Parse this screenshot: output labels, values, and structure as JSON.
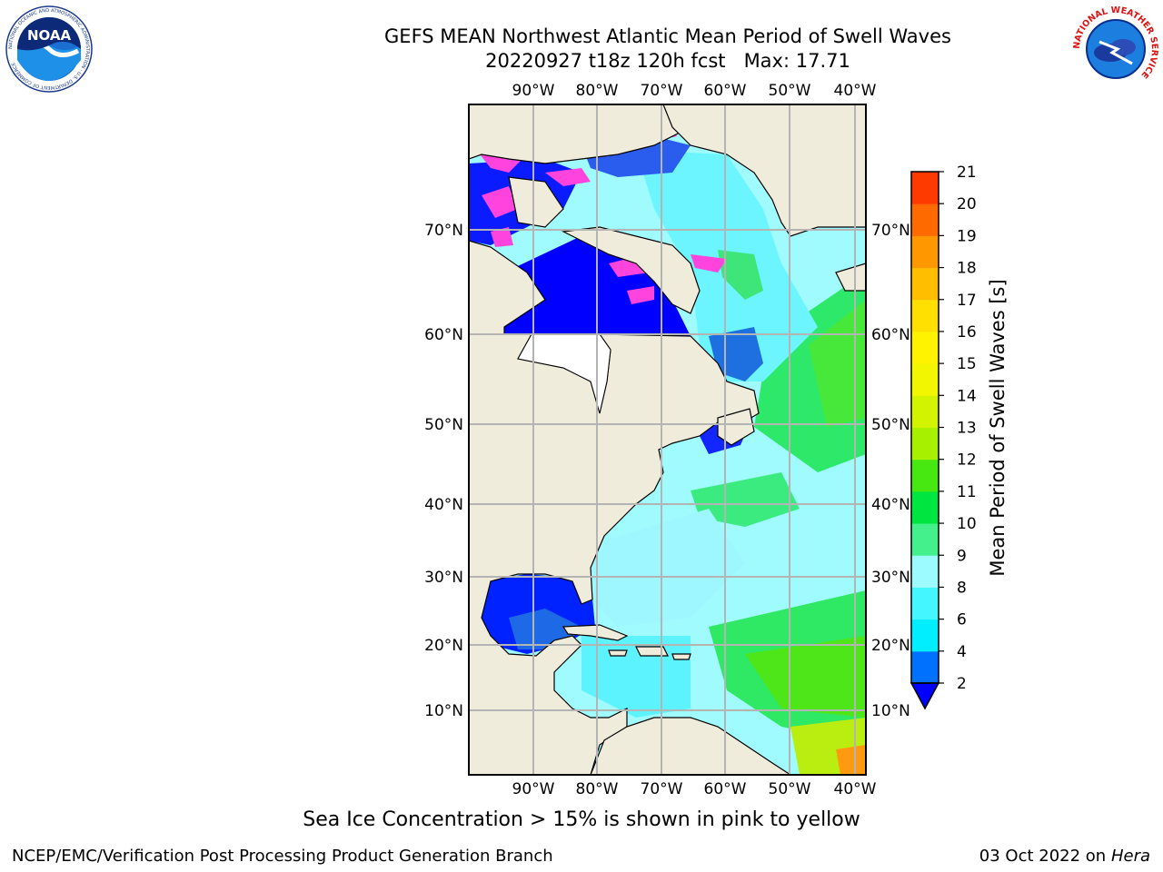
{
  "header": {
    "title_line1": "GEFS MEAN Northwest Atlantic Mean Period of Swell Waves",
    "title_line2": "20220927 t18z 120h fcst   Max: 17.71"
  },
  "map": {
    "lon_labels": [
      "90°W",
      "80°W",
      "70°W",
      "60°W",
      "50°W",
      "40°W"
    ],
    "lat_labels": [
      "70°N",
      "60°N",
      "50°N",
      "40°N",
      "30°N",
      "20°N",
      "10°N"
    ],
    "land_color": "#efecdc",
    "grid_color": "#b4b4b4",
    "ice_color": "#ff44dd"
  },
  "colorbar": {
    "label": "Mean Period of Swell Waves [s]",
    "ticks": [
      "2",
      "4",
      "6",
      "8",
      "9",
      "10",
      "11",
      "12",
      "13",
      "14",
      "15",
      "16",
      "17",
      "18",
      "19",
      "20",
      "21"
    ],
    "colors": [
      "#0070ff",
      "#00eeff",
      "#44f6ff",
      "#9bfbff",
      "#44f08c",
      "#00e640",
      "#47e812",
      "#a6f000",
      "#d2f400",
      "#f2f700",
      "#fff300",
      "#ffe000",
      "#ffbe00",
      "#ff9800",
      "#ff6a00",
      "#ff3a00",
      "#ff0000"
    ],
    "under_color": "#0000ff"
  },
  "caption": "Sea Ice Concentration > 15% is shown in pink to yellow",
  "footer": {
    "left": "NCEP/EMC/Verification Post Processing Product Generation Branch",
    "date": "03 Oct 2022 on",
    "host": "Hera"
  },
  "logos": {
    "noaa_text": "NOAA",
    "noaa_ring": "NATIONAL OCEANIC AND ATMOSPHERIC ADMINISTRATION · U.S. DEPARTMENT OF COMMERCE",
    "nws_ring": "NATIONAL WEATHER SERVICE"
  }
}
